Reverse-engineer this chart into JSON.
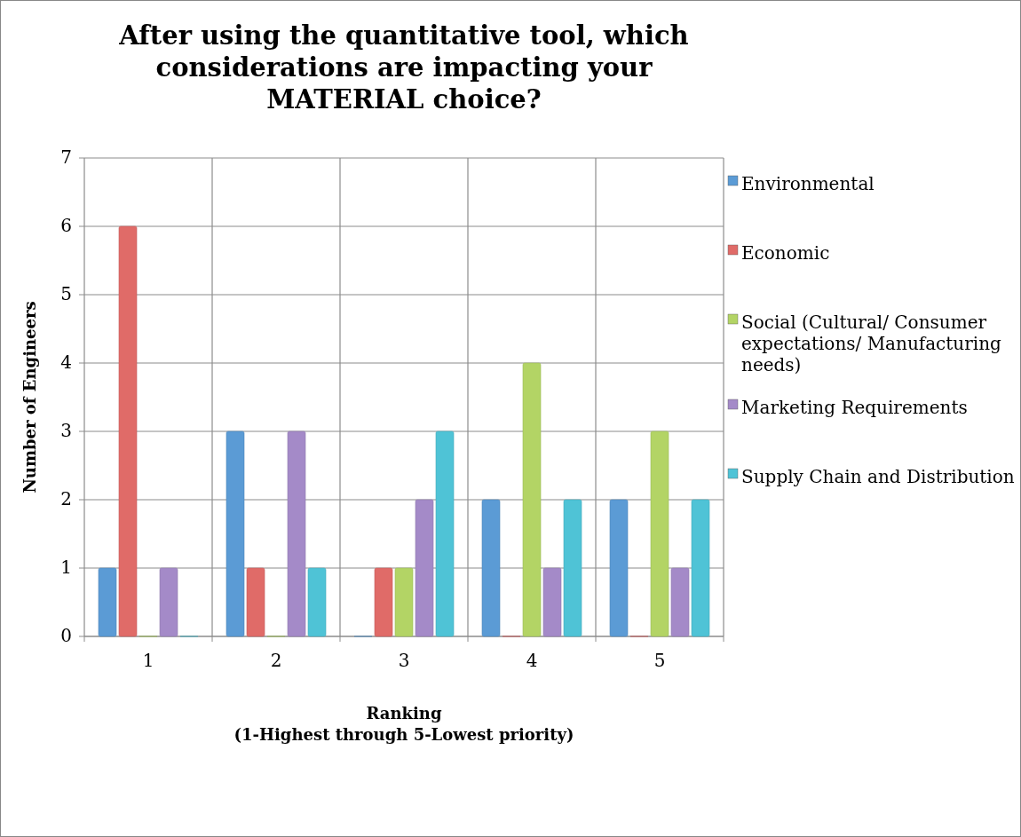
{
  "chart_data": {
    "type": "bar",
    "title": "After using the quantitative tool, which considerations are impacting your MATERIAL choice?",
    "xlabel": "Ranking\n(1-Highest through 5-Lowest priority)",
    "ylabel": "Number of Engineers",
    "categories": [
      "1",
      "2",
      "3",
      "4",
      "5"
    ],
    "series": [
      {
        "name": "Environmental",
        "color": "#5b9bd5",
        "values": [
          1,
          3,
          0,
          2,
          2
        ]
      },
      {
        "name": "Economic",
        "color": "#e06b68",
        "values": [
          6,
          1,
          1,
          0,
          0
        ]
      },
      {
        "name": "Social (Cultural/ Consumer expectations/ Manufacturing needs)",
        "color": "#b3d465",
        "values": [
          0,
          0,
          1,
          4,
          3
        ]
      },
      {
        "name": "Marketing Requirements",
        "color": "#a48ac8",
        "values": [
          1,
          3,
          2,
          1,
          1
        ]
      },
      {
        "name": "Supply Chain and Distribution",
        "color": "#4fc3d6",
        "values": [
          0,
          1,
          3,
          2,
          2
        ]
      }
    ],
    "ylim": [
      0,
      7
    ],
    "yticks": [
      0,
      1,
      2,
      3,
      4,
      5,
      6,
      7
    ],
    "grid": true,
    "legend": "right"
  }
}
